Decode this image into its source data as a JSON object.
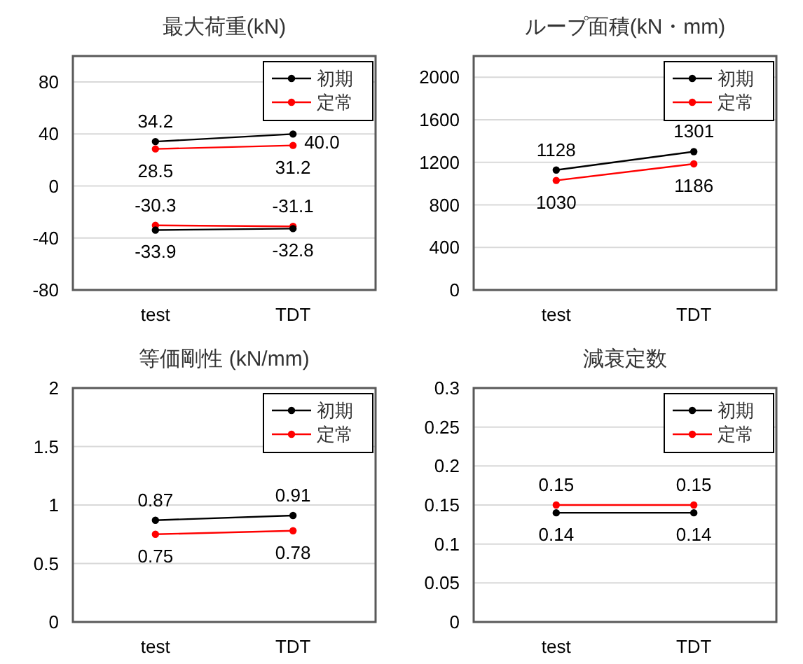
{
  "chart_data": [
    {
      "type": "line",
      "title": "最大荷重(kN)",
      "categories": [
        "test",
        "TDT"
      ],
      "ylim": [
        -80,
        100
      ],
      "yticks": [
        -80,
        -40,
        0,
        40,
        80
      ],
      "grid": "y",
      "legend": "top right",
      "marker": "circle",
      "data_labels": true,
      "series": [
        {
          "name": "初期",
          "color": "#000000",
          "values": [
            34.2,
            40.0
          ],
          "value_labels": [
            "34.2",
            "40.0"
          ]
        },
        {
          "name": "定常",
          "color": "#ff0000",
          "values": [
            28.5,
            31.2
          ],
          "value_labels": [
            "28.5",
            "31.2"
          ]
        },
        {
          "color": "#ff0000",
          "values": [
            -30.3,
            -31.1
          ],
          "value_labels": [
            "-30.3",
            "-31.1"
          ]
        },
        {
          "color": "#000000",
          "values": [
            -33.9,
            -32.8
          ],
          "value_labels": [
            "-33.9",
            "-32.8"
          ]
        }
      ]
    },
    {
      "type": "line",
      "title": "ループ面積(kN・mm)",
      "categories": [
        "test",
        "TDT"
      ],
      "ylim": [
        0,
        2200
      ],
      "yticks": [
        0,
        400,
        800,
        1200,
        1600,
        2000
      ],
      "grid": "y",
      "legend": "top right",
      "marker": "circle",
      "data_labels": true,
      "series": [
        {
          "name": "初期",
          "color": "#000000",
          "values": [
            1128,
            1301
          ]
        },
        {
          "name": "定常",
          "color": "#ff0000",
          "values": [
            1030,
            1186
          ]
        }
      ]
    },
    {
      "type": "line",
      "title": "等価剛性 (kN/mm)",
      "categories": [
        "test",
        "TDT"
      ],
      "ylim": [
        0,
        2
      ],
      "yticks": [
        0,
        0.5,
        1,
        1.5,
        2
      ],
      "grid": "y",
      "legend": "top right",
      "marker": "circle",
      "data_labels": true,
      "series": [
        {
          "name": "初期",
          "color": "#000000",
          "values": [
            0.87,
            0.91
          ]
        },
        {
          "name": "定常",
          "color": "#ff0000",
          "values": [
            0.75,
            0.78
          ]
        }
      ]
    },
    {
      "type": "line",
      "title": "減衰定数",
      "categories": [
        "test",
        "TDT"
      ],
      "ylim": [
        0,
        0.3
      ],
      "yticks": [
        0,
        0.05,
        0.1,
        0.15,
        0.2,
        0.25,
        0.3
      ],
      "grid": "y",
      "legend": "top right",
      "marker": "circle",
      "data_labels": true,
      "series": [
        {
          "name": "初期",
          "color": "#000000",
          "values": [
            0.14,
            0.14
          ]
        },
        {
          "name": "定常",
          "color": "#ff0000",
          "values": [
            0.15,
            0.15
          ]
        }
      ]
    }
  ]
}
